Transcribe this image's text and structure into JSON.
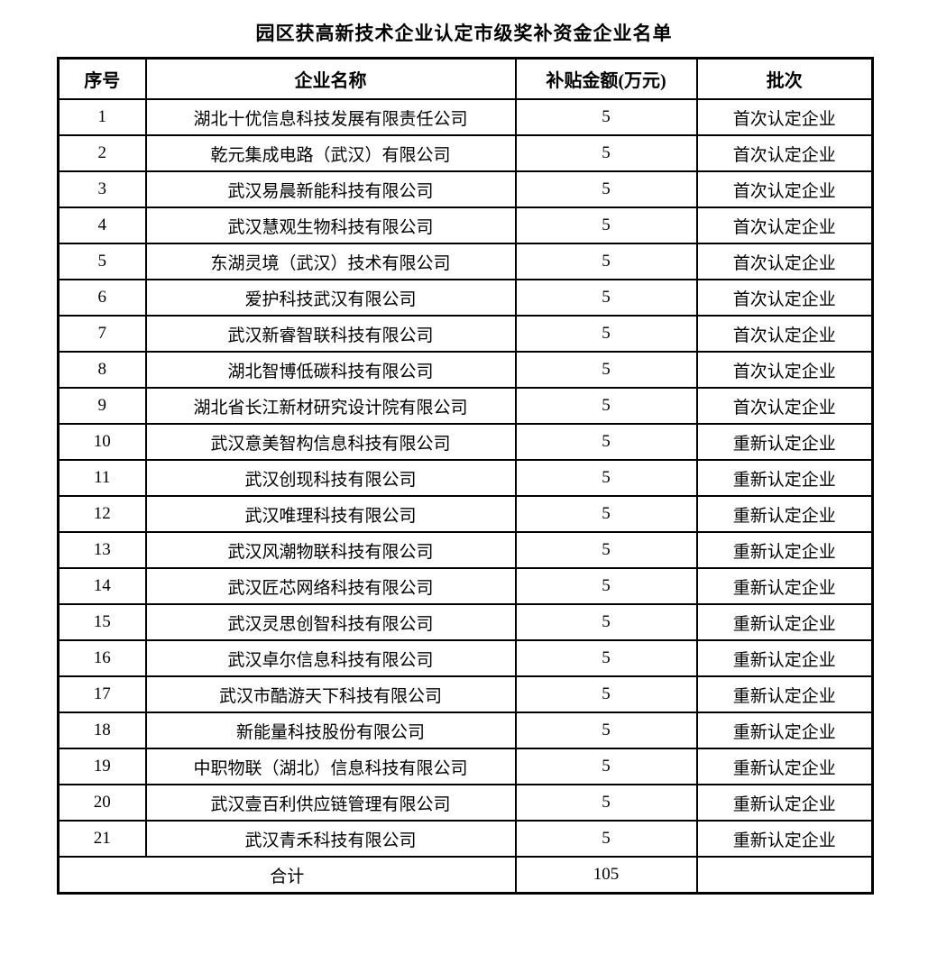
{
  "title": "园区获高新技术企业认定市级奖补资金企业名单",
  "table": {
    "headers": {
      "no": "序号",
      "name": "企业名称",
      "amount": "补贴金额(万元)",
      "batch": "批次"
    },
    "rows": [
      {
        "no": "1",
        "name": "湖北十优信息科技发展有限责任公司",
        "amount": "5",
        "batch": "首次认定企业"
      },
      {
        "no": "2",
        "name": "乾元集成电路（武汉）有限公司",
        "amount": "5",
        "batch": "首次认定企业"
      },
      {
        "no": "3",
        "name": "武汉易晨新能科技有限公司",
        "amount": "5",
        "batch": "首次认定企业"
      },
      {
        "no": "4",
        "name": "武汉慧观生物科技有限公司",
        "amount": "5",
        "batch": "首次认定企业"
      },
      {
        "no": "5",
        "name": "东湖灵境（武汉）技术有限公司",
        "amount": "5",
        "batch": "首次认定企业"
      },
      {
        "no": "6",
        "name": "爱护科技武汉有限公司",
        "amount": "5",
        "batch": "首次认定企业"
      },
      {
        "no": "7",
        "name": "武汉新睿智联科技有限公司",
        "amount": "5",
        "batch": "首次认定企业"
      },
      {
        "no": "8",
        "name": "湖北智博低碳科技有限公司",
        "amount": "5",
        "batch": "首次认定企业"
      },
      {
        "no": "9",
        "name": "湖北省长江新材研究设计院有限公司",
        "amount": "5",
        "batch": "首次认定企业"
      },
      {
        "no": "10",
        "name": "武汉意美智构信息科技有限公司",
        "amount": "5",
        "batch": "重新认定企业"
      },
      {
        "no": "11",
        "name": "武汉创现科技有限公司",
        "amount": "5",
        "batch": "重新认定企业"
      },
      {
        "no": "12",
        "name": "武汉唯理科技有限公司",
        "amount": "5",
        "batch": "重新认定企业"
      },
      {
        "no": "13",
        "name": "武汉风潮物联科技有限公司",
        "amount": "5",
        "batch": "重新认定企业"
      },
      {
        "no": "14",
        "name": "武汉匠芯网络科技有限公司",
        "amount": "5",
        "batch": "重新认定企业"
      },
      {
        "no": "15",
        "name": "武汉灵思创智科技有限公司",
        "amount": "5",
        "batch": "重新认定企业"
      },
      {
        "no": "16",
        "name": "武汉卓尔信息科技有限公司",
        "amount": "5",
        "batch": "重新认定企业"
      },
      {
        "no": "17",
        "name": "武汉市酷游天下科技有限公司",
        "amount": "5",
        "batch": "重新认定企业"
      },
      {
        "no": "18",
        "name": "新能量科技股份有限公司",
        "amount": "5",
        "batch": "重新认定企业"
      },
      {
        "no": "19",
        "name": "中职物联（湖北）信息科技有限公司",
        "amount": "5",
        "batch": "重新认定企业"
      },
      {
        "no": "20",
        "name": "武汉壹百利供应链管理有限公司",
        "amount": "5",
        "batch": "重新认定企业"
      },
      {
        "no": "21",
        "name": "武汉青禾科技有限公司",
        "amount": "5",
        "batch": "重新认定企业"
      }
    ],
    "total": {
      "label": "合计",
      "amount": "105",
      "batch": ""
    }
  },
  "colors": {
    "text": "#000000",
    "border": "#000000",
    "background": "#ffffff"
  }
}
